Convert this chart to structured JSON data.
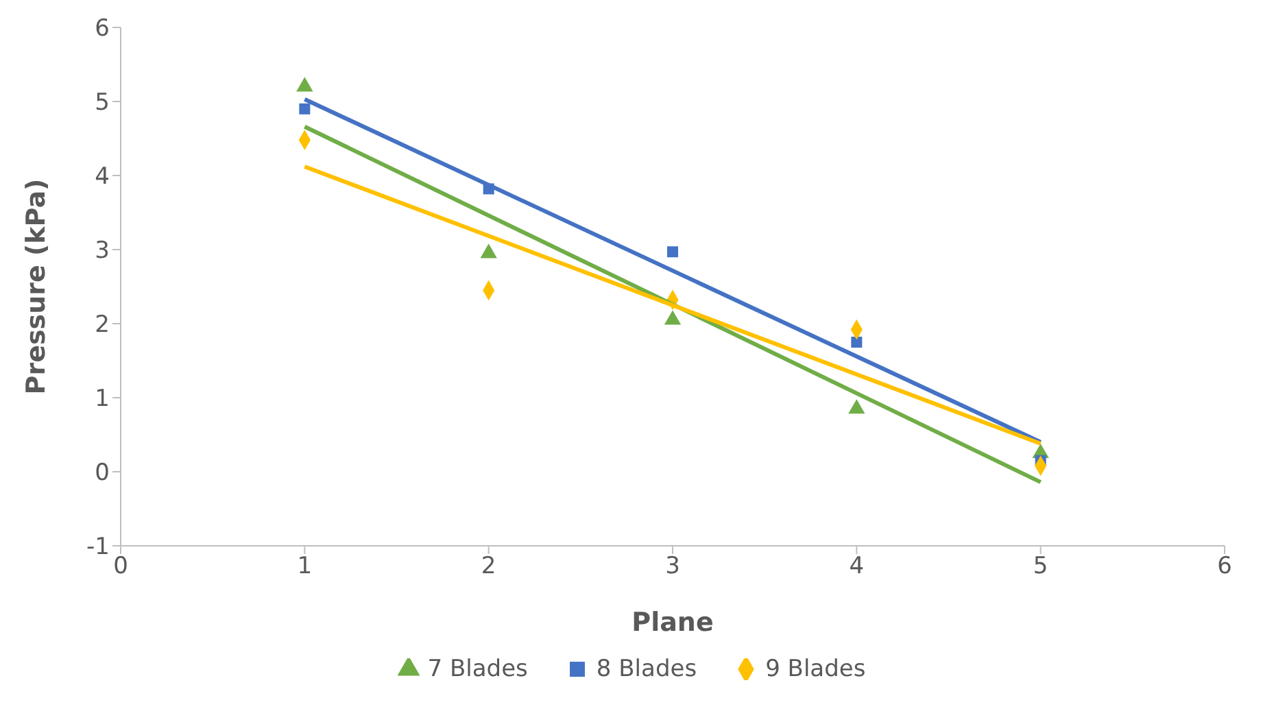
{
  "chart_data": {
    "type": "scatter",
    "xlabel": "Plane",
    "ylabel": "Pressure (kPa)",
    "xlim": [
      0,
      6
    ],
    "xticks": [
      0,
      1,
      2,
      3,
      4,
      5,
      6
    ],
    "ylim": [
      -1,
      6
    ],
    "yticks": [
      -1,
      0,
      1,
      2,
      3,
      4,
      5,
      6
    ],
    "grid": false,
    "legend": "bottom",
    "series": [
      {
        "name": "7 Blades",
        "color": "#70ad47",
        "marker": "triangle",
        "x": [
          1,
          2,
          3,
          4,
          5
        ],
        "values": [
          5.2,
          2.95,
          2.05,
          0.85,
          0.25
        ]
      },
      {
        "name": "8 Blades",
        "color": "#4472c4",
        "marker": "square",
        "x": [
          1,
          2,
          3,
          4,
          5
        ],
        "values": [
          4.9,
          3.82,
          2.97,
          1.75,
          0.15
        ]
      },
      {
        "name": "9 Blades",
        "color": "#ffc000",
        "marker": "diamond",
        "x": [
          1,
          2,
          3,
          4,
          5
        ],
        "values": [
          4.48,
          2.45,
          2.32,
          1.92,
          0.08
        ]
      },
      {
        "type": "line",
        "color": "#70ad47",
        "marker": "none",
        "x": [
          1,
          5
        ],
        "values": [
          4.66,
          -0.14
        ]
      },
      {
        "type": "line",
        "color": "#4472c4",
        "marker": "none",
        "x": [
          1,
          5
        ],
        "values": [
          5.03,
          0.4
        ]
      },
      {
        "type": "line",
        "color": "#ffc000",
        "marker": "none",
        "x": [
          1,
          5
        ],
        "values": [
          4.12,
          0.38
        ]
      }
    ]
  }
}
